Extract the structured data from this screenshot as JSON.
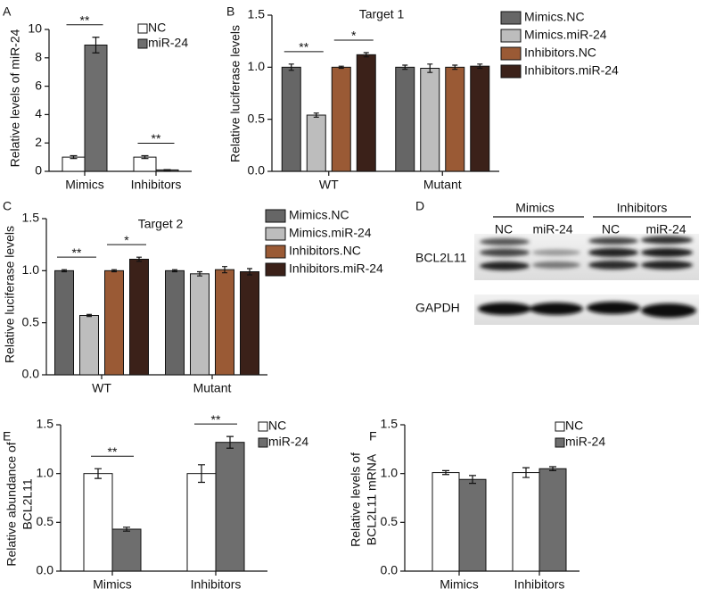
{
  "chart_data": [
    {
      "panel": "A",
      "type": "bar",
      "ylabel": [
        "Relative levels of miR-24"
      ],
      "categories": [
        "Mimics",
        "Inhibitors"
      ],
      "series": [
        {
          "name": "NC",
          "color": "#ffffff",
          "values": [
            1.0,
            1.0
          ],
          "errors": [
            0.1,
            0.1
          ]
        },
        {
          "name": "miR-24",
          "color": "#6e6e6e",
          "values": [
            8.9,
            0.1
          ],
          "errors": [
            0.55,
            0.02
          ]
        }
      ],
      "ylim": [
        0,
        10
      ],
      "yticks": [
        0,
        2,
        4,
        6,
        8,
        10
      ],
      "annotations": [
        {
          "text": "**",
          "category": 0,
          "series": [
            0,
            1
          ]
        },
        {
          "text": "**",
          "category": 1,
          "series": [
            0,
            1
          ]
        }
      ]
    },
    {
      "panel": "B",
      "type": "bar",
      "title": "Target 1",
      "ylabel": [
        "Relative luciferase levels"
      ],
      "categories": [
        "WT",
        "Mutant"
      ],
      "series": [
        {
          "name": "Mimics.NC",
          "color": "#666666",
          "values": [
            1.0,
            1.0
          ],
          "errors": [
            0.03,
            0.02
          ]
        },
        {
          "name": "Mimics.miR-24",
          "color": "#bdbdbd",
          "values": [
            0.54,
            0.99
          ],
          "errors": [
            0.02,
            0.04
          ]
        },
        {
          "name": "Inhibitors.NC",
          "color": "#9a5a35",
          "values": [
            1.0,
            1.0
          ],
          "errors": [
            0.01,
            0.02
          ]
        },
        {
          "name": "Inhibitors.miR-24",
          "color": "#3b2119",
          "values": [
            1.12,
            1.01
          ],
          "errors": [
            0.02,
            0.02
          ]
        }
      ],
      "ylim": [
        0,
        1.5
      ],
      "yticks": [
        {
          "value": 0,
          "label": "0.0"
        },
        {
          "value": 0.5,
          "label": "0.5"
        },
        {
          "value": 1,
          "label": "1.0"
        },
        {
          "value": 1.5,
          "label": "1.5"
        }
      ],
      "annotations": [
        {
          "text": "**",
          "category": 0,
          "series": [
            0,
            1
          ]
        },
        {
          "text": "*",
          "category": 0,
          "series": [
            2,
            3
          ]
        }
      ]
    },
    {
      "panel": "C",
      "type": "bar",
      "title": "Target 2",
      "ylabel": [
        "Relative luciferase levels"
      ],
      "categories": [
        "WT",
        "Mutant"
      ],
      "series": [
        {
          "name": "Mimics.NC",
          "color": "#666666",
          "values": [
            1.0,
            1.0
          ],
          "errors": [
            0.01,
            0.01
          ]
        },
        {
          "name": "Mimics.miR-24",
          "color": "#bdbdbd",
          "values": [
            0.57,
            0.97
          ],
          "errors": [
            0.01,
            0.02
          ]
        },
        {
          "name": "Inhibitors.NC",
          "color": "#9a5a35",
          "values": [
            1.0,
            1.01
          ],
          "errors": [
            0.01,
            0.03
          ]
        },
        {
          "name": "Inhibitors.miR-24",
          "color": "#3b2119",
          "values": [
            1.11,
            0.99
          ],
          "errors": [
            0.02,
            0.03
          ]
        }
      ],
      "ylim": [
        0,
        1.5
      ],
      "yticks": [
        {
          "value": 0,
          "label": "0.0"
        },
        {
          "value": 0.5,
          "label": "0.5"
        },
        {
          "value": 1,
          "label": "1.0"
        },
        {
          "value": 1.5,
          "label": "1.5"
        }
      ],
      "annotations": [
        {
          "text": "**",
          "category": 0,
          "series": [
            0,
            1
          ]
        },
        {
          "text": "*",
          "category": 0,
          "series": [
            2,
            3
          ]
        }
      ]
    },
    {
      "panel": "E",
      "type": "bar",
      "ylabel": [
        "Relative abundance of",
        "BCL2L11"
      ],
      "categories": [
        "Mimics",
        "Inhibitors"
      ],
      "series": [
        {
          "name": "NC",
          "color": "#ffffff",
          "values": [
            1.0,
            1.0
          ],
          "errors": [
            0.05,
            0.09
          ]
        },
        {
          "name": "miR-24",
          "color": "#6e6e6e",
          "values": [
            0.43,
            1.32
          ],
          "errors": [
            0.02,
            0.06
          ]
        }
      ],
      "ylim": [
        0,
        1.5
      ],
      "yticks": [
        {
          "value": 0,
          "label": "0.0"
        },
        {
          "value": 0.5,
          "label": "0.5"
        },
        {
          "value": 1,
          "label": "1.0"
        },
        {
          "value": 1.5,
          "label": "1.5"
        }
      ],
      "annotations": [
        {
          "text": "**",
          "category": 0,
          "series": [
            0,
            1
          ]
        },
        {
          "text": "**",
          "category": 1,
          "series": [
            0,
            1
          ]
        }
      ]
    },
    {
      "panel": "F",
      "type": "bar",
      "ylabel": [
        "Relative levels of",
        "BCL2L11 mRNA"
      ],
      "categories": [
        "Mimics",
        "Inhibitors"
      ],
      "series": [
        {
          "name": "NC",
          "color": "#ffffff",
          "values": [
            1.01,
            1.01
          ],
          "errors": [
            0.02,
            0.05
          ]
        },
        {
          "name": "miR-24",
          "color": "#6e6e6e",
          "values": [
            0.94,
            1.05
          ],
          "errors": [
            0.04,
            0.02
          ]
        }
      ],
      "ylim": [
        0,
        1.5
      ],
      "yticks": [
        {
          "value": 0,
          "label": "0.0"
        },
        {
          "value": 0.5,
          "label": "0.5"
        },
        {
          "value": 1,
          "label": "1.0"
        },
        {
          "value": 1.5,
          "label": "1.5"
        }
      ],
      "annotations": []
    }
  ],
  "blot": {
    "panel": "D",
    "groups": [
      {
        "label": "Mimics",
        "lanes": [
          "NC",
          "miR-24"
        ]
      },
      {
        "label": "Inhibitors",
        "lanes": [
          "NC",
          "miR-24"
        ]
      }
    ],
    "rows": [
      "BCL2L11",
      "GAPDH"
    ]
  }
}
